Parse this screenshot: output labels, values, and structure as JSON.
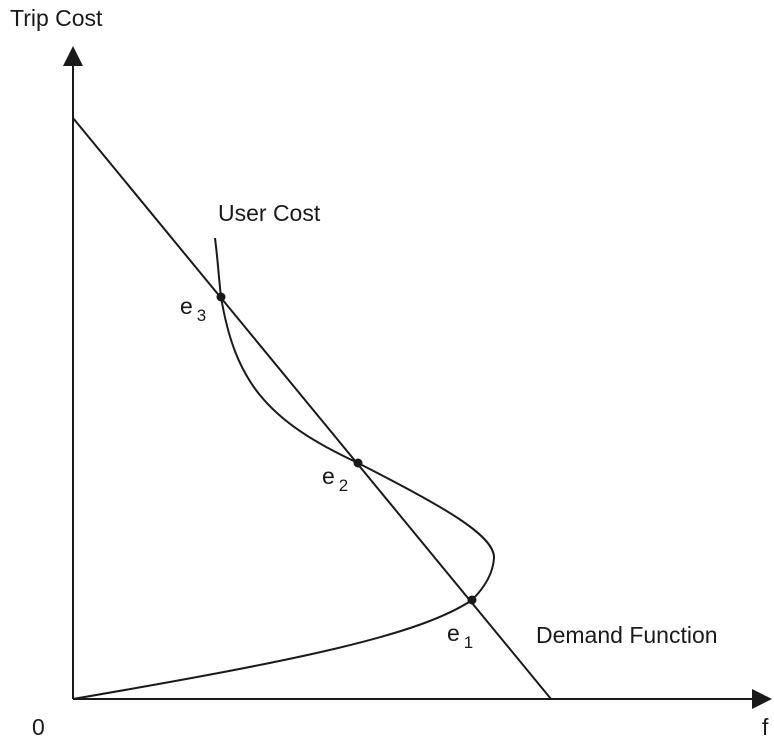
{
  "axes": {
    "y_label": "Trip Cost",
    "x_label": "f",
    "origin_label": "0"
  },
  "curves": {
    "user_cost_label": "User Cost",
    "demand_label": "Demand Function"
  },
  "equilibria": [
    {
      "letter": "e",
      "subscript": "3"
    },
    {
      "letter": "e",
      "subscript": "2"
    },
    {
      "letter": "e",
      "subscript": "1"
    }
  ],
  "colors": {
    "ink": "#1a1a1a",
    "background": "#ffffff"
  }
}
